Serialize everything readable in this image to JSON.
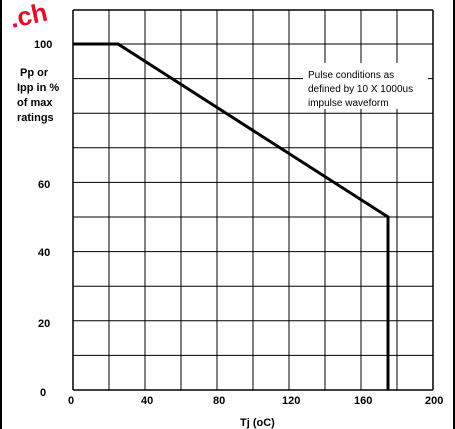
{
  "chart_data": {
    "type": "line",
    "xlabel": "Tj (oC)",
    "ylabel": [
      "Pp or",
      "Ipp in %",
      "of max",
      "ratings"
    ],
    "x_ticks": [
      "0",
      "40",
      "80",
      "120",
      "160",
      "200"
    ],
    "y_ticks": [
      "0",
      "20",
      "40",
      "60",
      "100"
    ],
    "xlim": [
      0,
      200
    ],
    "ylim": [
      0,
      100
    ],
    "grid": true,
    "series": [
      {
        "x": [
          0,
          25,
          175,
          175
        ],
        "y": [
          100,
          100,
          50,
          0
        ]
      }
    ],
    "annotation": [
      "Pulse conditions as",
      "defined by 10 X 1000us",
      "impulse waveform"
    ]
  },
  "watermark": ".ch",
  "colors": {
    "line": "#000000",
    "grid": "#000000",
    "watermark": "#e0102a"
  }
}
